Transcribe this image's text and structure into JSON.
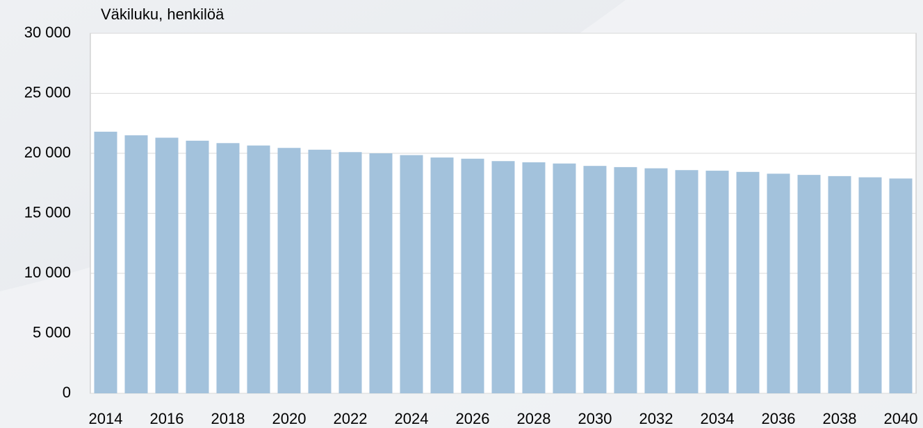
{
  "chart_data": {
    "type": "bar",
    "title": "Väkiluku, henkilöä",
    "categories": [
      "2014",
      null,
      "2016",
      null,
      "2018",
      null,
      "2020",
      null,
      "2022",
      null,
      "2024",
      null,
      "2026",
      null,
      "2028",
      null,
      "2030",
      null,
      "2032",
      null,
      "2034",
      null,
      "2036",
      null,
      "2038",
      null,
      "2040"
    ],
    "values": [
      21800,
      21500,
      21300,
      21050,
      20850,
      20650,
      20450,
      20300,
      20100,
      20000,
      19850,
      19650,
      19550,
      19350,
      19250,
      19150,
      18950,
      18850,
      18750,
      18600,
      18550,
      18450,
      18300,
      18200,
      18100,
      18000,
      17900
    ],
    "color": "#a3c2dc",
    "ylim": [
      0,
      30000
    ],
    "yticks": [
      0,
      {
        "value": 5000,
        "label": "5 000"
      },
      {
        "value": 10000,
        "label": "10 000"
      },
      {
        "value": 15000,
        "label": "15 000"
      },
      {
        "value": 20000,
        "label": "20 000"
      },
      {
        "value": 25000,
        "label": "25 000"
      },
      {
        "value": 30000,
        "label": "30 000"
      }
    ],
    "grid": true
  }
}
